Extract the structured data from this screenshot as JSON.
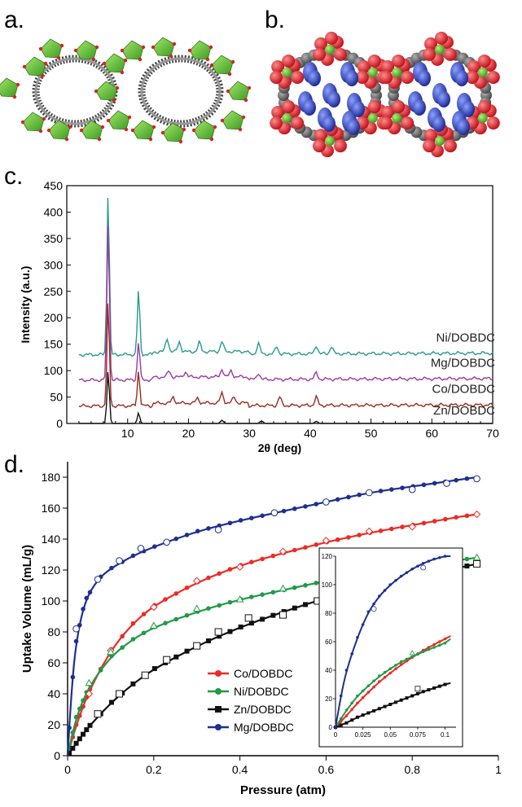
{
  "panels": {
    "a": "a.",
    "b": "b.",
    "c": "c.",
    "d": "d."
  },
  "colors": {
    "ni": "#2a9a8a",
    "mg": "#9b3aa0",
    "co": "#9c2a22",
    "zn": "#111111",
    "co_iso": "#ec2b24",
    "ni_iso": "#1f9a46",
    "zn_iso": "#111111",
    "mg_iso": "#1f2f8f",
    "oxygen": "#d8222a",
    "metal": "#6cc23a",
    "carbon": "#6a6a6a",
    "guest": "#2a40b8"
  },
  "chart_data": [
    {
      "type": "line",
      "panel": "c",
      "xlabel": "2θ (deg)",
      "ylabel": "Intensity (a.u.)",
      "xlim": [
        0,
        70
      ],
      "ylim": [
        0,
        450
      ],
      "xticks": [
        10,
        20,
        30,
        40,
        50,
        60,
        70
      ],
      "yticks": [
        0,
        50,
        100,
        150,
        200,
        250,
        300,
        350,
        400,
        450
      ],
      "grid": false,
      "series": [
        {
          "name": "Ni/DOBDC",
          "offset": 130,
          "end": 133,
          "peaks": [
            [
              6.8,
              440
            ],
            [
              11.8,
              253
            ],
            [
              16.5,
              162
            ],
            [
              18.5,
              155
            ],
            [
              21.8,
              153
            ],
            [
              25.5,
              155
            ],
            [
              31.5,
              152
            ],
            [
              34.5,
              146
            ],
            [
              41,
              148
            ],
            [
              43.5,
              146
            ]
          ]
        },
        {
          "name": "Mg/DOBDC",
          "offset": 82,
          "end": 85,
          "peaks": [
            [
              6.8,
              382
            ],
            [
              11.8,
              155
            ],
            [
              16.8,
              100
            ],
            [
              19.5,
              98
            ],
            [
              25.5,
              103
            ],
            [
              27,
              100
            ],
            [
              31.5,
              96
            ],
            [
              41,
              96
            ]
          ]
        },
        {
          "name": "Co/DOBDC",
          "offset": 33,
          "end": 35,
          "peaks": [
            [
              6.8,
              230
            ],
            [
              11.8,
              100
            ],
            [
              17.5,
              50
            ],
            [
              21.5,
              48
            ],
            [
              25.5,
              58
            ],
            [
              27.5,
              50
            ],
            [
              35,
              50
            ],
            [
              41,
              50
            ]
          ]
        },
        {
          "name": "Zn/DOBDC",
          "offset": 0,
          "end": 0,
          "peaks": [
            [
              6.8,
              100
            ],
            [
              11.8,
              20
            ],
            [
              25.5,
              6
            ],
            [
              32,
              5
            ],
            [
              41,
              4
            ]
          ]
        }
      ]
    },
    {
      "type": "line",
      "panel": "d",
      "xlabel": "Pressure (atm)",
      "ylabel": "Uptake Volume (mL/g)",
      "xlim": [
        0,
        1
      ],
      "ylim": [
        0,
        190
      ],
      "xticks": [
        0,
        0.2,
        0.4,
        0.6,
        0.8,
        1
      ],
      "xticklabels": [
        "0",
        "0.2",
        "0.4",
        "0.6",
        "0.8",
        "1"
      ],
      "yticks": [
        0,
        20,
        40,
        60,
        80,
        100,
        120,
        140,
        160,
        180
      ],
      "legend": "bottom-center",
      "series": [
        {
          "name": "Co/DOBDC",
          "x": [
            0,
            0.02,
            0.05,
            0.1,
            0.15,
            0.2,
            0.3,
            0.4,
            0.5,
            0.6,
            0.7,
            0.8,
            0.9,
            0.95
          ],
          "y": [
            0,
            20,
            42,
            68,
            85,
            97,
            112,
            123,
            131,
            138,
            144,
            149,
            154,
            156
          ]
        },
        {
          "name": "Ni/DOBDC",
          "x": [
            0,
            0.02,
            0.05,
            0.1,
            0.15,
            0.2,
            0.3,
            0.4,
            0.5,
            0.6,
            0.7,
            0.8,
            0.9,
            0.95
          ],
          "y": [
            0,
            25,
            45,
            64,
            75,
            83,
            93,
            101,
            107,
            113,
            117,
            121,
            126,
            128
          ]
        },
        {
          "name": "Zn/DOBDC",
          "x": [
            0,
            0.02,
            0.05,
            0.1,
            0.15,
            0.2,
            0.3,
            0.4,
            0.5,
            0.6,
            0.7,
            0.8,
            0.9,
            0.95
          ],
          "y": [
            0,
            8,
            19,
            34,
            46,
            56,
            71,
            83,
            93,
            102,
            109,
            115,
            121,
            124
          ]
        },
        {
          "name": "Mg/DOBDC",
          "x": [
            0,
            0.01,
            0.02,
            0.04,
            0.07,
            0.1,
            0.15,
            0.2,
            0.3,
            0.4,
            0.5,
            0.6,
            0.7,
            0.8,
            0.9,
            0.95
          ],
          "y": [
            0,
            45,
            74,
            100,
            114,
            121,
            129,
            135,
            145,
            152,
            158,
            164,
            170,
            174,
            178,
            180
          ]
        }
      ],
      "open_markers": {
        "Co/DOBDC": {
          "x": [
            0.05,
            0.1,
            0.2,
            0.3,
            0.4,
            0.5,
            0.6,
            0.7,
            0.8,
            0.95
          ],
          "y": [
            40,
            68,
            96,
            113,
            122,
            132,
            139,
            145,
            148,
            156
          ]
        },
        "Ni/DOBDC": {
          "x": [
            0.05,
            0.1,
            0.2,
            0.3,
            0.4,
            0.5,
            0.6,
            0.7,
            0.8,
            0.95
          ],
          "y": [
            47,
            67,
            84,
            95,
            101,
            108,
            113,
            117,
            120,
            128
          ]
        },
        "Zn/DOBDC": {
          "x": [
            0.07,
            0.12,
            0.18,
            0.23,
            0.3,
            0.35,
            0.42,
            0.5,
            0.58,
            0.65,
            0.75,
            0.8,
            0.88,
            0.95
          ],
          "y": [
            27,
            40,
            52,
            62,
            71,
            80,
            89,
            91,
            100,
            106,
            110,
            113,
            120,
            124
          ]
        },
        "Mg/DOBDC": {
          "x": [
            0.02,
            0.07,
            0.12,
            0.17,
            0.23,
            0.35,
            0.48,
            0.6,
            0.7,
            0.8,
            0.88,
            0.95
          ],
          "y": [
            82,
            114,
            126,
            134,
            138,
            146,
            157,
            164,
            170,
            172,
            176,
            179
          ]
        }
      }
    },
    {
      "type": "line",
      "panel": "d-inset",
      "xlim": [
        0,
        0.11
      ],
      "ylim": [
        0,
        120
      ],
      "xticks": [
        0,
        0.025,
        0.05,
        0.075,
        0.1
      ],
      "xticklabels": [
        "0",
        "0.025",
        "0.05",
        "0.075",
        "0.1"
      ],
      "yticks": [
        0,
        20,
        40,
        60,
        80,
        100,
        120
      ],
      "series": [
        {
          "name": "Co/DOBDC",
          "x": [
            0,
            0.01,
            0.02,
            0.04,
            0.06,
            0.08,
            0.1,
            0.105
          ],
          "y": [
            0,
            8,
            17,
            32,
            44,
            54,
            62,
            64
          ]
        },
        {
          "name": "Ni/DOBDC",
          "x": [
            0,
            0.01,
            0.02,
            0.04,
            0.06,
            0.08,
            0.1,
            0.105
          ],
          "y": [
            0,
            12,
            22,
            36,
            46,
            53,
            59,
            62
          ]
        },
        {
          "name": "Zn/DOBDC",
          "x": [
            0,
            0.01,
            0.02,
            0.04,
            0.06,
            0.08,
            0.1,
            0.105
          ],
          "y": [
            0,
            3,
            7,
            13,
            19,
            25,
            30,
            31
          ]
        },
        {
          "name": "Mg/DOBDC",
          "x": [
            0,
            0.005,
            0.01,
            0.02,
            0.03,
            0.04,
            0.05,
            0.06,
            0.07,
            0.08,
            0.09,
            0.1,
            0.105
          ],
          "y": [
            0,
            22,
            40,
            63,
            81,
            92,
            100,
            106,
            111,
            115,
            118,
            120,
            120
          ]
        }
      ]
    }
  ]
}
